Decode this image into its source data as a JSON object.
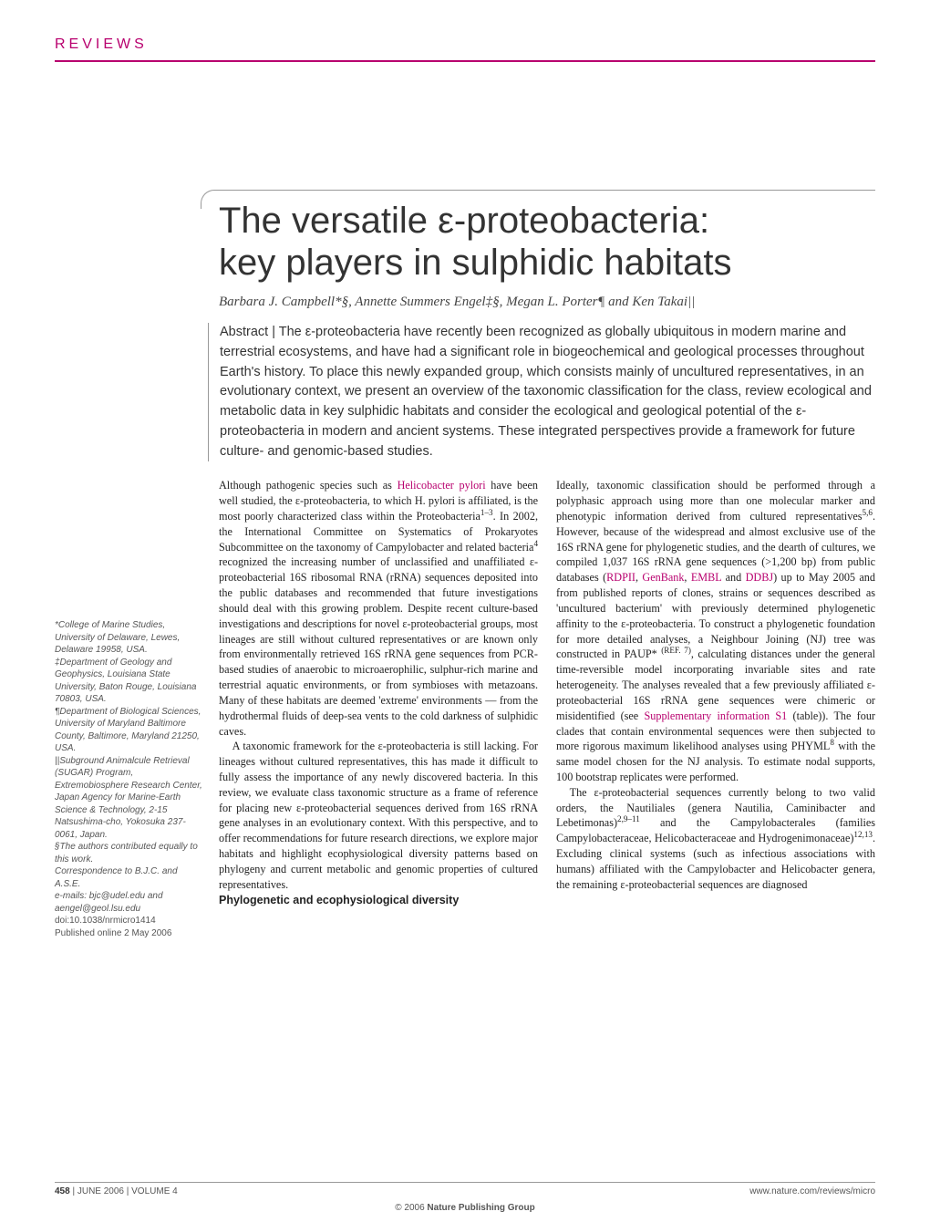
{
  "section_label": "REVIEWS",
  "title_line1": "The versatile ε-proteobacteria:",
  "title_line2": "key players in sulphidic habitats",
  "authors": "Barbara J. Campbell*§, Annette Summers Engel‡§, Megan L. Porter¶ and Ken Takai||",
  "abstract_label": "Abstract | ",
  "abstract": "The ε-proteobacteria have recently been recognized as globally ubiquitous in modern marine and terrestrial ecosystems, and have had a significant role in biogeochemical and geological processes throughout Earth's history. To place this newly expanded group, which consists mainly of uncultured representatives, in an evolutionary context, we present an overview of the taxonomic classification for the class, review ecological and metabolic data in key sulphidic habitats and consider the ecological and geological potential of the ε-proteobacteria in modern and ancient systems. These integrated perspectives provide a framework for future culture- and genomic-based studies.",
  "col1_p1a": "Although pathogenic species such as ",
  "col1_link1": "Helicobacter pylori",
  "col1_p1b": " have been well studied, the ε-proteobacteria, to which H. pylori is affiliated, is the most poorly characterized class within the Proteobacteria",
  "col1_ref1": "1–3",
  "col1_p1c": ". In 2002, the International Committee on Systematics of Prokaryotes Subcommittee on the taxonomy of Campylobacter and related bacteria",
  "col1_ref2": "4",
  "col1_p1d": " recognized the increasing number of unclassified and unaffiliated ε-proteobacterial 16S ribosomal RNA (rRNA) sequences deposited into the public databases and recommended that future investigations should deal with this growing problem. Despite recent culture-based investigations and descriptions for novel ε-proteobacterial groups, most lineages are still without cultured representatives or are known only from environmentally retrieved 16S rRNA gene sequences from PCR-based studies of anaerobic to microaerophilic, sulphur-rich marine and terrestrial aquatic environments, or from symbioses with metazoans. Many of these habitats are deemed 'extreme' environments — from the hydrothermal fluids of deep-sea vents to the cold darkness of sulphidic caves.",
  "col1_p2": "A taxonomic framework for the ε-proteobacteria is still lacking. For lineages without cultured representatives, this has made it difficult to fully assess the importance of any newly discovered bacteria. In this review, we evaluate class taxonomic structure as a frame of reference for placing new ε-proteobacterial sequences derived from 16S rRNA gene analyses in an evolutionary context. With this perspective, and to offer recommendations for future research directions, we explore major habitats and highlight ecophysiological diversity patterns based on phylogeny and current metabolic and genomic properties of cultured representatives.",
  "col2_heading": "Phylogenetic and ecophysiological diversity",
  "col2_p1a": "Ideally, taxonomic classification should be performed through a polyphasic approach using more than one molecular marker and phenotypic information derived from cultured representatives",
  "col2_ref1": "5,6",
  "col2_p1b": ". However, because of the widespread and almost exclusive use of the 16S rRNA gene for phylogenetic studies, and the dearth of cultures, we compiled 1,037 16S rRNA gene sequences (>1,200 bp) from public databases (",
  "col2_link1": "RDPII",
  "col2_sep1": ", ",
  "col2_link2": "GenBank",
  "col2_sep2": ", ",
  "col2_link3": "EMBL",
  "col2_sep3": " and ",
  "col2_link4": "DDBJ",
  "col2_p1c": ") up to May 2005 and from published reports of clones, strains or sequences described as 'uncultured bacterium' with previously determined phylogenetic affinity to the ε-proteobacteria. To construct a phylogenetic foundation for more detailed analyses, a Neighbour Joining (NJ) tree was constructed in PAUP* ",
  "col2_ref2": "(REF. 7)",
  "col2_p1d": ", calculating distances under the general time-reversible model incorporating invariable sites and rate heterogeneity. The analyses revealed that a few previously affiliated ε-proteobacterial 16S rRNA gene sequences were chimeric or misidentified (see ",
  "col2_link5": "Supplementary information S1",
  "col2_p1e": " (table)). The four clades that contain environmental sequences were then subjected to more rigorous maximum likelihood analyses using PHYML",
  "col2_ref3": "8",
  "col2_p1f": " with the same model chosen for the NJ analysis. To estimate nodal supports, 100 bootstrap replicates were performed.",
  "col2_p2a": "The ε-proteobacterial sequences currently belong to two valid orders, the Nautiliales (genera Nautilia, Caminibacter and Lebetimonas)",
  "col2_ref4": "2,9–11",
  "col2_p2b": " and the Campylobacterales (families Campylobacteraceae, Helicobacteraceae and Hydrogenimonaceae)",
  "col2_ref5": "12,13",
  "col2_p2c": ". Excluding clinical systems (such as infectious associations with humans) affiliated with the Campylobacter and Helicobacter genera, the remaining ε-proteobacterial sequences are diagnosed",
  "aff1": "*College of Marine Studies, University of Delaware, Lewes, Delaware 19958, USA.",
  "aff2": "‡Department of Geology and Geophysics, Louisiana State University, Baton Rouge, Louisiana 70803, USA.",
  "aff3": "¶Department of Biological Sciences, University of Maryland Baltimore County, Baltimore, Maryland 21250, USA.",
  "aff4": "||Subground Animalcule Retrieval (SUGAR) Program, Extremobiosphere Research Center, Japan Agency for Marine-Earth Science & Technology, 2-15 Natsushima-cho, Yokosuka 237-0061, Japan.",
  "aff5": "§The authors contributed equally to this work.",
  "aff6": "Correspondence to B.J.C. and A.S.E.",
  "aff7": "e-mails: bjc@udel.edu and aengel@geol.lsu.edu",
  "doi": "doi:10.1038/nrmicro1414",
  "pubdate": "Published online 2 May 2006",
  "footer_page": "458",
  "footer_issue": " | JUNE 2006 | VOLUME 4",
  "footer_url": "www.nature.com/reviews/micro",
  "copyright_year": "© 2006 ",
  "copyright_pub": "Nature Publishing Group",
  "colors": {
    "accent": "#b8006e",
    "text": "#333333",
    "rule": "#999999"
  }
}
